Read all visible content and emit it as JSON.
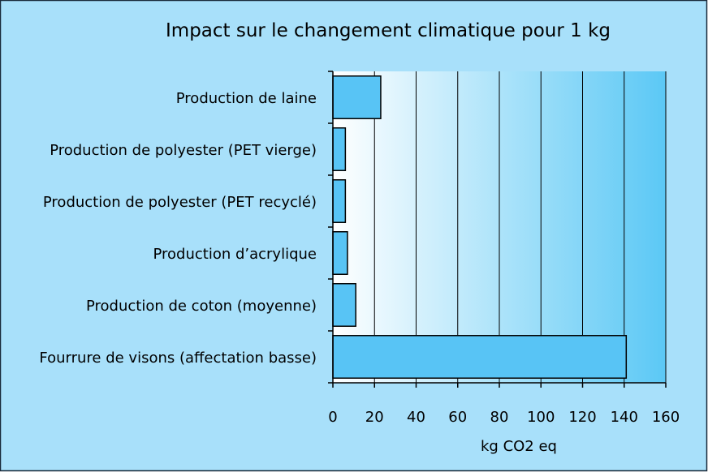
{
  "chart_data": {
    "type": "bar",
    "orientation": "horizontal",
    "title": "Impact sur le changement climatique pour 1 kg",
    "xlabel": "kg CO2 eq",
    "ylabel": "",
    "categories": [
      "Production de laine",
      "Production de polyester (PET vierge)",
      "Production de polyester (PET recyclé)",
      "Production d’acrylique",
      "Production de coton (moyenne)",
      "Fourrure de visons (affectation basse)"
    ],
    "values": [
      23,
      6,
      6,
      7,
      11,
      141
    ],
    "xlim": [
      0,
      160
    ],
    "x_ticks": [
      "0",
      "20",
      "40",
      "60",
      "80",
      "100",
      "120",
      "140",
      "160"
    ],
    "grid": "vertical",
    "legend": "none"
  },
  "colors": {
    "background": "#a8e0fa",
    "plot_gradient_start": "#ffffff",
    "plot_gradient_end": "#5bc8f5",
    "bar_fill": "#58c4f5",
    "bar_stroke": "#000000",
    "grid": "#000000",
    "frame": "#1a2a3a"
  }
}
